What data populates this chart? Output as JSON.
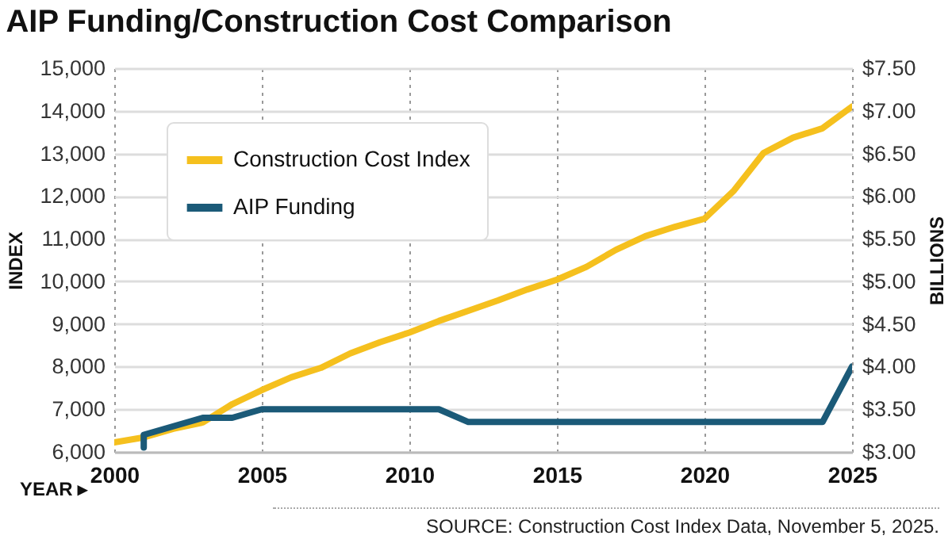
{
  "chart_data": {
    "type": "line",
    "title": "AIP Funding/Construction Cost Comparison",
    "xlabel": "YEAR ▸",
    "ylabel": "INDEX",
    "y2label": "BILLIONS",
    "annotations": [
      "SOURCE: Construction Cost Index Data, November 5, 2025."
    ],
    "xlim": [
      2000,
      2025
    ],
    "xticks": [
      2000,
      2005,
      2010,
      2015,
      2020,
      2025
    ],
    "ylim": [
      6000,
      15000
    ],
    "yticks": [
      {
        "value": 6000,
        "label": "6,000"
      },
      {
        "value": 7000,
        "label": "7,000"
      },
      {
        "value": 8000,
        "label": "8,000"
      },
      {
        "value": 9000,
        "label": "9,000"
      },
      {
        "value": 10000,
        "label": "10,000"
      },
      {
        "value": 11000,
        "label": "11,000"
      },
      {
        "value": 12000,
        "label": "12,000"
      },
      {
        "value": 13000,
        "label": "13,000"
      },
      {
        "value": 14000,
        "label": "14,000"
      },
      {
        "value": 15000,
        "label": "15,000"
      }
    ],
    "y2lim": [
      3,
      7.5
    ],
    "y2ticks": [
      {
        "value": 3,
        "label": "$3.00"
      },
      {
        "value": 3.5,
        "label": "$3.50"
      },
      {
        "value": 4,
        "label": "$4.00"
      },
      {
        "value": 4.5,
        "label": "$4.50"
      },
      {
        "value": 5,
        "label": "$5.00"
      },
      {
        "value": 5.5,
        "label": "$5.50"
      },
      {
        "value": 6,
        "label": "$6.00"
      },
      {
        "value": 6.5,
        "label": "$6.50"
      },
      {
        "value": 7,
        "label": "$7.00"
      },
      {
        "value": 7.5,
        "label": "$7.50"
      }
    ],
    "grid": true,
    "legend": "top left",
    "series": [
      {
        "name": "Construction Cost Index",
        "color": "#f5c01e",
        "x": [
          2000,
          2001,
          2002,
          2003,
          2004,
          2005,
          2006,
          2007,
          2008,
          2009,
          2010,
          2011,
          2012,
          2013,
          2014,
          2015,
          2016,
          2017,
          2018,
          2019,
          2020,
          2021,
          2022,
          2023,
          2024,
          2025
        ],
        "values": [
          6220,
          6340,
          6540,
          6690,
          7120,
          7450,
          7750,
          7970,
          8310,
          8570,
          8800,
          9070,
          9310,
          9550,
          9810,
          10040,
          10340,
          10740,
          11060,
          11280,
          11470,
          12130,
          13010,
          13370,
          13590,
          14100
        ]
      },
      {
        "name": "AIP Funding",
        "color": "#1b5a78",
        "axis": "y2",
        "x": [
          2001,
          2001,
          2002,
          2003,
          2004,
          2005,
          2006,
          2007,
          2008,
          2009,
          2010,
          2011,
          2012,
          2013,
          2014,
          2015,
          2016,
          2017,
          2018,
          2019,
          2020,
          2021,
          2022,
          2023,
          2024,
          2025
        ],
        "values": [
          3.05,
          3.2,
          3.3,
          3.4,
          3.4,
          3.5,
          3.5,
          3.5,
          3.5,
          3.5,
          3.5,
          3.5,
          3.35,
          3.35,
          3.35,
          3.35,
          3.35,
          3.35,
          3.35,
          3.35,
          3.35,
          3.35,
          3.35,
          3.35,
          3.35,
          4.0
        ]
      }
    ]
  }
}
